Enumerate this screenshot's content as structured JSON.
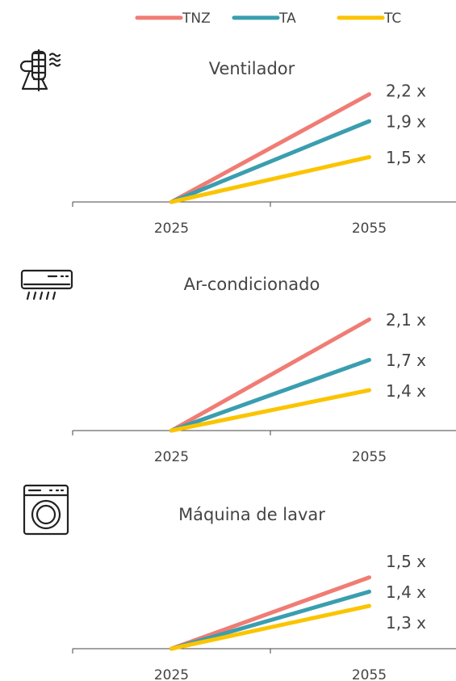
{
  "chart_data": [
    {
      "type": "line",
      "title": "Ventilador",
      "categories": [
        "2025",
        "2055"
      ],
      "series": [
        {
          "name": "TNZ",
          "color": "#f07c74",
          "values": [
            1,
            2.2
          ],
          "value_labels": [
            null,
            "2,2 x"
          ]
        },
        {
          "name": "TA",
          "color": "#3a9eaf",
          "values": [
            1,
            1.9
          ],
          "value_labels": [
            null,
            "1,9 x"
          ]
        },
        {
          "name": "TC",
          "color": "#fbc400",
          "values": [
            1,
            1.5
          ],
          "value_labels": [
            null,
            "1,5 x"
          ]
        }
      ],
      "ylim": [
        1,
        2.35
      ]
    },
    {
      "type": "line",
      "title": "Ar-condicionado",
      "categories": [
        "2025",
        "2055"
      ],
      "series": [
        {
          "name": "TNZ",
          "color": "#f07c74",
          "values": [
            1,
            2.1
          ],
          "value_labels": [
            null,
            "2,1 x"
          ]
        },
        {
          "name": "TA",
          "color": "#3a9eaf",
          "values": [
            1,
            1.7
          ],
          "value_labels": [
            null,
            "1,7 x"
          ]
        },
        {
          "name": "TC",
          "color": "#fbc400",
          "values": [
            1,
            1.4
          ],
          "value_labels": [
            null,
            "1,4 x"
          ]
        }
      ],
      "ylim": [
        1,
        2.2
      ]
    },
    {
      "type": "line",
      "title": "Máquina de lavar",
      "categories": [
        "2025",
        "2055"
      ],
      "series": [
        {
          "name": "TNZ",
          "color": "#f07c74",
          "values": [
            1,
            1.5
          ],
          "value_labels": [
            null,
            "1,5 x"
          ]
        },
        {
          "name": "TA",
          "color": "#3a9eaf",
          "values": [
            1,
            1.4
          ],
          "value_labels": [
            null,
            "1,4 x"
          ]
        },
        {
          "name": "TC",
          "color": "#fbc400",
          "values": [
            1,
            1.3
          ],
          "value_labels": [
            null,
            "1,3 x"
          ]
        }
      ],
      "ylim": [
        1,
        1.85
      ]
    }
  ]
}
